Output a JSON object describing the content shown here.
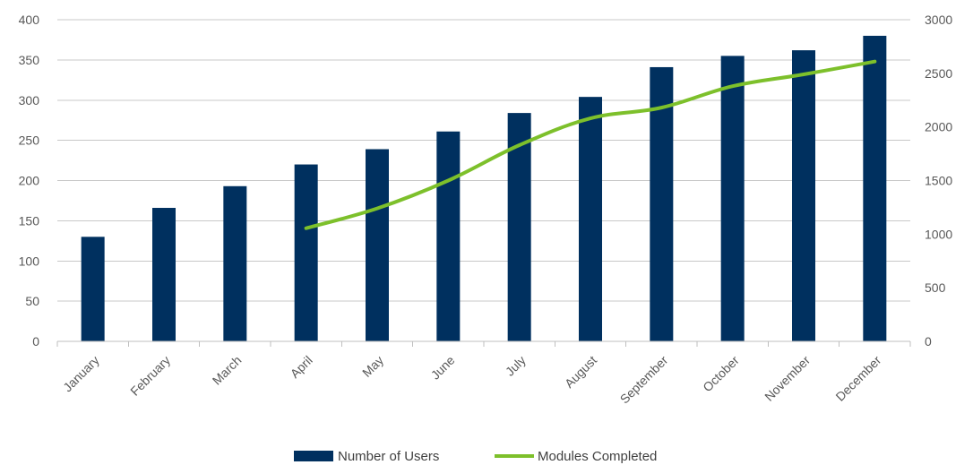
{
  "chart_data": {
    "type": "bar",
    "categories": [
      "January",
      "February",
      "March",
      "April",
      "May",
      "June",
      "July",
      "August",
      "September",
      "October",
      "November",
      "December"
    ],
    "series": [
      {
        "name": "Number of Users",
        "type": "bar",
        "axis": "left",
        "color": "#00305f",
        "values": [
          130,
          166,
          193,
          220,
          239,
          261,
          284,
          304,
          341,
          355,
          362,
          380
        ]
      },
      {
        "name": "Modules Completed",
        "type": "line",
        "axis": "right",
        "color": "#7dc02b",
        "values": [
          null,
          null,
          null,
          1055,
          1240,
          1500,
          1830,
          2080,
          2180,
          2380,
          2490,
          2610
        ]
      }
    ],
    "y_left": {
      "min": 0,
      "max": 400,
      "step": 50,
      "ticks": [
        "0",
        "50",
        "100",
        "150",
        "200",
        "250",
        "300",
        "350",
        "400"
      ]
    },
    "y_right": {
      "min": 0,
      "max": 3000,
      "step": 500,
      "ticks": [
        "0",
        "500",
        "1000",
        "1500",
        "2000",
        "2500",
        "3000"
      ]
    },
    "title": "",
    "xlabel": "",
    "ylabel": "",
    "grid": true,
    "legend_position": "bottom"
  },
  "legend": {
    "users_label": "Number of Users",
    "modules_label": "Modules Completed"
  }
}
